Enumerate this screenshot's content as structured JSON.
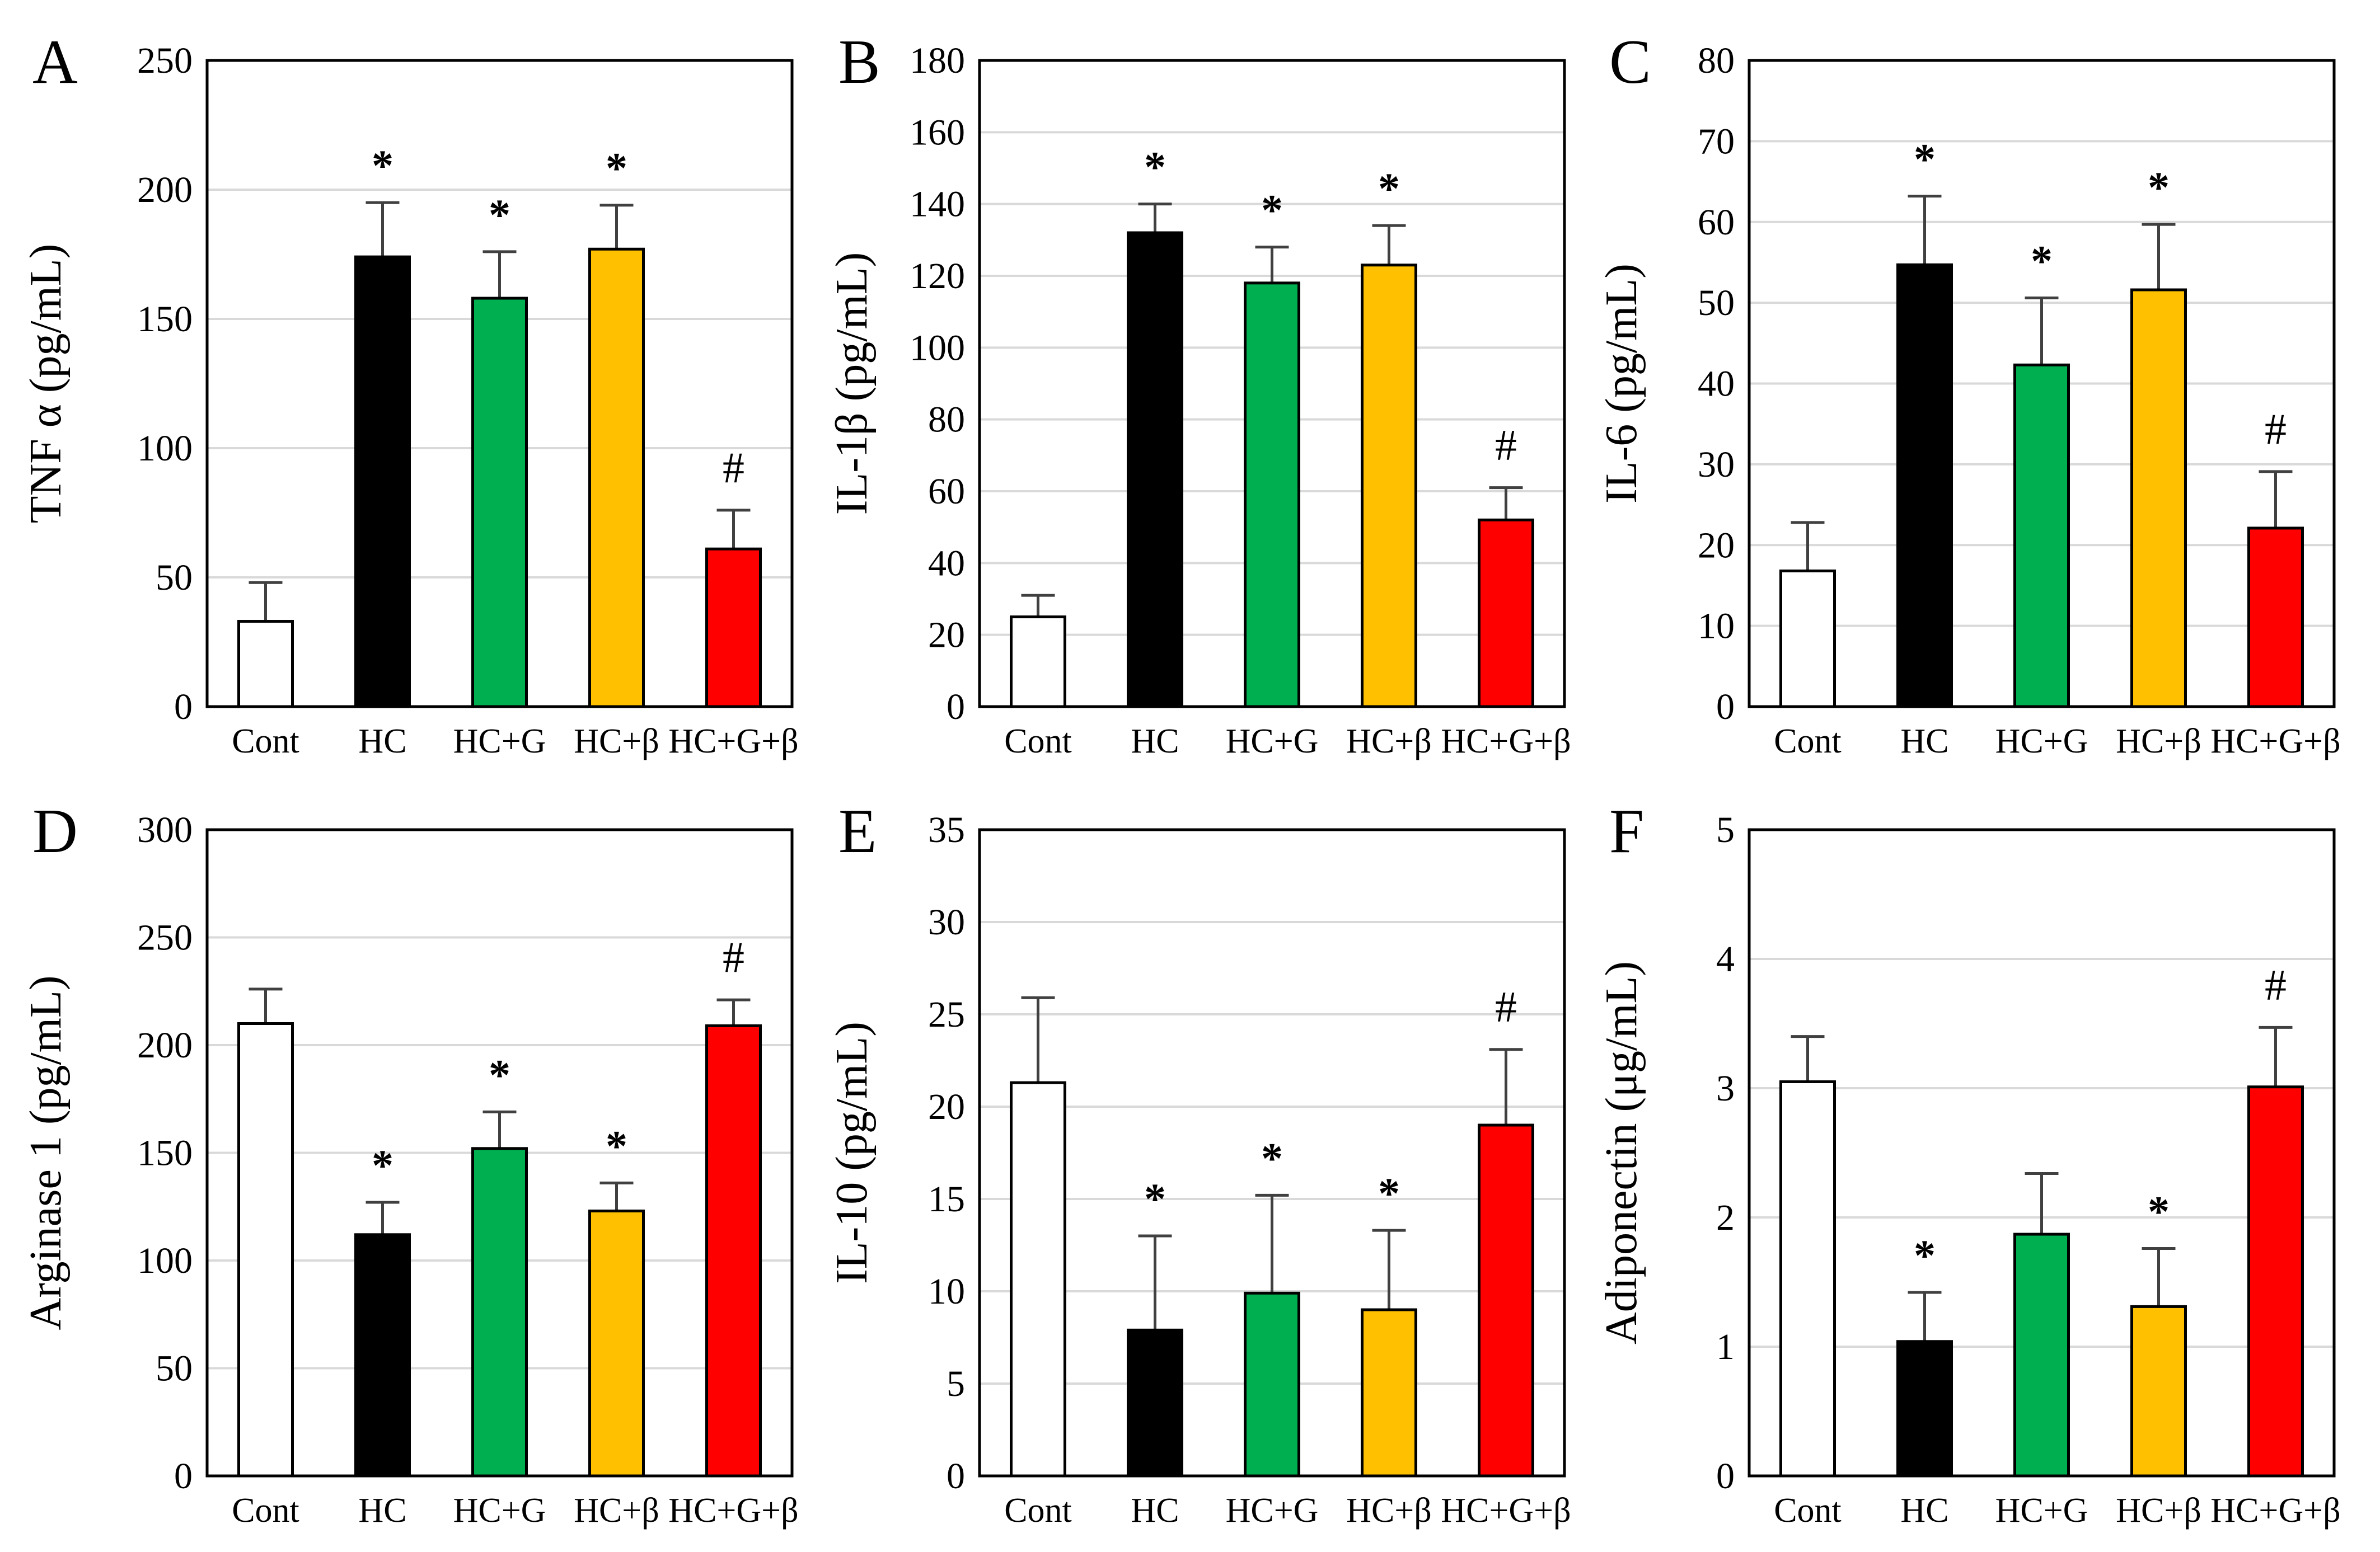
{
  "figure": {
    "background": "#ffffff"
  },
  "colors": {
    "Cont": "#ffffff",
    "HC": "#000000",
    "HC+G": "#00b050",
    "HC+β": "#ffc000",
    "HC+G+β": "#ff0000",
    "grid": "#d9d9d9",
    "error_bar": "#404040"
  },
  "chart_data": [
    {
      "panel": "A",
      "type": "bar",
      "categories": [
        "Cont",
        "HC",
        "HC+G",
        "HC+β",
        "HC+G+β"
      ],
      "values": [
        33,
        174,
        158,
        177,
        61
      ],
      "errors": [
        15,
        21,
        18,
        17,
        15
      ],
      "significance": [
        "",
        "*",
        "*",
        "*",
        "#"
      ],
      "ylabel": "TNF α (pg/mL)",
      "ylim": [
        0,
        250
      ],
      "yticks": [
        0,
        50,
        100,
        150,
        200,
        250
      ],
      "grid": true
    },
    {
      "panel": "B",
      "type": "bar",
      "categories": [
        "Cont",
        "HC",
        "HC+G",
        "HC+β",
        "HC+G+β"
      ],
      "values": [
        25,
        132,
        118,
        123,
        52
      ],
      "errors": [
        6,
        8,
        10,
        11,
        9
      ],
      "significance": [
        "",
        "*",
        "*",
        "*",
        "#"
      ],
      "ylabel": "IL-1β (pg/mL)",
      "ylim": [
        0,
        180
      ],
      "yticks": [
        0,
        20,
        40,
        60,
        80,
        100,
        120,
        140,
        160,
        180
      ],
      "grid": true
    },
    {
      "panel": "C",
      "type": "bar",
      "categories": [
        "Cont",
        "HC",
        "HC+G",
        "HC+β",
        "HC+G+β"
      ],
      "values": [
        16.8,
        54.7,
        42.3,
        51.6,
        22.1
      ],
      "errors": [
        6,
        8.5,
        8.3,
        8.1,
        7
      ],
      "significance": [
        "",
        "*",
        "*",
        "*",
        "#"
      ],
      "ylabel": "IL-6 (pg/mL)",
      "ylim": [
        0,
        80
      ],
      "yticks": [
        0,
        10,
        20,
        30,
        40,
        50,
        60,
        70,
        80
      ],
      "grid": true
    },
    {
      "panel": "D",
      "type": "bar",
      "categories": [
        "Cont",
        "HC",
        "HC+G",
        "HC+β",
        "HC+G+β"
      ],
      "values": [
        210,
        112,
        152,
        123,
        209
      ],
      "errors": [
        16,
        15,
        17,
        13,
        12
      ],
      "significance": [
        "",
        "*",
        "*",
        "*",
        "#"
      ],
      "ylabel": "Arginase 1 (pg/mL)",
      "ylim": [
        0,
        300
      ],
      "yticks": [
        0,
        50,
        100,
        150,
        200,
        250,
        300
      ],
      "grid": true
    },
    {
      "panel": "E",
      "type": "bar",
      "categories": [
        "Cont",
        "HC",
        "HC+G",
        "HC+β",
        "HC+G+β"
      ],
      "values": [
        21.3,
        7.9,
        9.9,
        9.0,
        19.0
      ],
      "errors": [
        4.6,
        5.1,
        5.3,
        4.3,
        4.1
      ],
      "significance": [
        "",
        "*",
        "*",
        "*",
        "#"
      ],
      "ylabel": "IL-10 (pg/mL)",
      "ylim": [
        0,
        35
      ],
      "yticks": [
        0,
        5,
        10,
        15,
        20,
        25,
        30,
        35
      ],
      "grid": true
    },
    {
      "panel": "F",
      "type": "bar",
      "categories": [
        "Cont",
        "HC",
        "HC+G",
        "HC+β",
        "HC+G+β"
      ],
      "values": [
        3.05,
        1.04,
        1.87,
        1.31,
        3.01
      ],
      "errors": [
        0.35,
        0.38,
        0.47,
        0.45,
        0.46
      ],
      "significance": [
        "",
        "*",
        "",
        "*",
        "#"
      ],
      "ylabel": "Adiponectin (μg/mL)",
      "ylim": [
        0,
        5
      ],
      "yticks": [
        0,
        1,
        2,
        3,
        4,
        5
      ],
      "grid": true
    }
  ]
}
